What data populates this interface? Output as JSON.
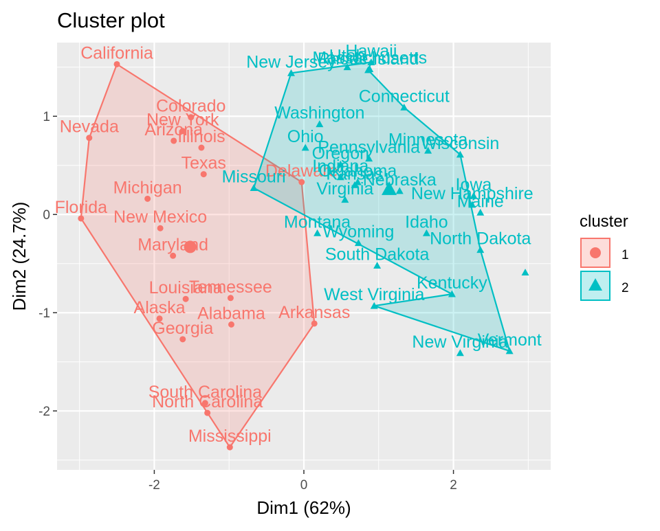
{
  "chart_data": {
    "type": "scatter",
    "title": "Cluster plot",
    "xlabel": "Dim1 (62%)",
    "ylabel": "Dim2 (24.7%)",
    "xlim": [
      -3.3,
      3.3
    ],
    "ylim": [
      -2.6,
      1.75
    ],
    "xticks": [
      -2,
      0,
      2
    ],
    "yticks": [
      -2,
      -1,
      0,
      1
    ],
    "xtick_labels": [
      "-2",
      "0",
      "2"
    ],
    "ytick_labels": [
      "-2",
      "-1",
      "0",
      "1"
    ],
    "grid": true,
    "legend": {
      "title": "cluster",
      "position": "right",
      "entries": [
        {
          "label": "1",
          "color": "#F8766D",
          "shape": "circle"
        },
        {
          "label": "2",
          "color": "#00BFC4",
          "shape": "triangle"
        }
      ]
    },
    "colors": {
      "1": "#F8766D",
      "2": "#00BFC4",
      "panel": "#EBEBEB"
    },
    "centers": [
      {
        "cluster": "1",
        "x": -1.52,
        "y": -0.33
      },
      {
        "cluster": "2",
        "x": 1.14,
        "y": 0.26
      }
    ],
    "series": [
      {
        "name": "1",
        "hull": [
          "California",
          "Nevada",
          "Florida",
          "Mississippi",
          "Arkansas",
          "Delaware"
        ],
        "points": [
          {
            "label": "California",
            "x": -2.5,
            "y": 1.53
          },
          {
            "label": "Nevada",
            "x": -2.87,
            "y": 0.78
          },
          {
            "label": "Colorado",
            "x": -1.51,
            "y": 0.99
          },
          {
            "label": "New York",
            "x": -1.62,
            "y": 0.85
          },
          {
            "label": "Arizona",
            "x": -1.74,
            "y": 0.75
          },
          {
            "label": "Illinois",
            "x": -1.37,
            "y": 0.68
          },
          {
            "label": "Texas",
            "x": -1.34,
            "y": 0.41
          },
          {
            "label": "Delaware",
            "x": -0.03,
            "y": 0.33
          },
          {
            "label": "Michigan",
            "x": -2.09,
            "y": 0.16
          },
          {
            "label": "Florida",
            "x": -2.98,
            "y": -0.04
          },
          {
            "label": "New Mexico",
            "x": -1.92,
            "y": -0.14
          },
          {
            "label": "Maryland",
            "x": -1.75,
            "y": -0.42
          },
          {
            "label": "Louisiana",
            "x": -1.58,
            "y": -0.86
          },
          {
            "label": "Tennessee",
            "x": -0.98,
            "y": -0.85
          },
          {
            "label": "Alaska",
            "x": -1.93,
            "y": -1.06
          },
          {
            "label": "Alabama",
            "x": -0.97,
            "y": -1.12
          },
          {
            "label": "Arkansas",
            "x": 0.14,
            "y": -1.11
          },
          {
            "label": "Georgia",
            "x": -1.62,
            "y": -1.27
          },
          {
            "label": "South Carolina",
            "x": -1.32,
            "y": -1.92
          },
          {
            "label": "North Carolina",
            "x": -1.29,
            "y": -2.02
          },
          {
            "label": "Mississippi",
            "x": -0.99,
            "y": -2.37
          }
        ]
      },
      {
        "name": "2",
        "hull": [
          "New Jersey",
          "Hawaii",
          "Rhode Island",
          "Connecticut",
          "Wisconsin",
          "North Dakota",
          "Vermont",
          "West Virginia",
          "Kentucky",
          "Missouri"
        ],
        "points": [
          {
            "label": "Massachusetts",
            "x": 0.88,
            "y": 1.48
          },
          {
            "label": "Hawaii",
            "x": 0.9,
            "y": 1.55
          },
          {
            "label": "Utah",
            "x": 0.58,
            "y": 1.5
          },
          {
            "label": "Rhode Island",
            "x": 0.86,
            "y": 1.47
          },
          {
            "label": "New Jersey",
            "x": -0.17,
            "y": 1.44
          },
          {
            "label": "Connecticut",
            "x": 1.34,
            "y": 1.09
          },
          {
            "label": "Washington",
            "x": 0.21,
            "y": 0.92
          },
          {
            "label": "Ohio",
            "x": 0.02,
            "y": 0.68
          },
          {
            "label": "Minnesota",
            "x": 1.66,
            "y": 0.65
          },
          {
            "label": "Wisconsin",
            "x": 2.09,
            "y": 0.61
          },
          {
            "label": "Pennsylvania",
            "x": 0.87,
            "y": 0.57
          },
          {
            "label": "Oregon",
            "x": 0.49,
            "y": 0.51
          },
          {
            "label": "Missouri",
            "x": -0.67,
            "y": 0.27
          },
          {
            "label": "Oklahoma",
            "x": 0.72,
            "y": 0.33
          },
          {
            "label": "Kansas",
            "x": 0.68,
            "y": 0.3
          },
          {
            "label": "Indiana",
            "x": 0.49,
            "y": 0.38
          },
          {
            "label": "Nebraska",
            "x": 1.28,
            "y": 0.24
          },
          {
            "label": "Iowa",
            "x": 2.27,
            "y": 0.19
          },
          {
            "label": "New Hampshire",
            "x": 2.25,
            "y": 0.1
          },
          {
            "label": "Virginia",
            "x": 0.55,
            "y": 0.15
          },
          {
            "label": "Maine",
            "x": 2.36,
            "y": 0.02
          },
          {
            "label": "Wyoming",
            "x": 0.73,
            "y": -0.29
          },
          {
            "label": "Idaho",
            "x": 1.64,
            "y": -0.19
          },
          {
            "label": "Montana",
            "x": 0.18,
            "y": -0.19
          },
          {
            "label": "North Dakota",
            "x": 2.36,
            "y": -0.36
          },
          {
            "label": "South Dakota",
            "x": 0.98,
            "y": -0.52
          },
          {
            "label": "Kentucky",
            "x": 1.98,
            "y": -0.81
          },
          {
            "label": "West Virginia",
            "x": 0.94,
            "y": -0.93
          },
          {
            "label": "Vermont",
            "x": 2.75,
            "y": -1.39
          },
          {
            "label": "New Virginia",
            "x": 2.09,
            "y": -1.41
          },
          {
            "label": "North Dakota tip",
            "x": 2.96,
            "y": -0.59
          }
        ]
      }
    ]
  }
}
